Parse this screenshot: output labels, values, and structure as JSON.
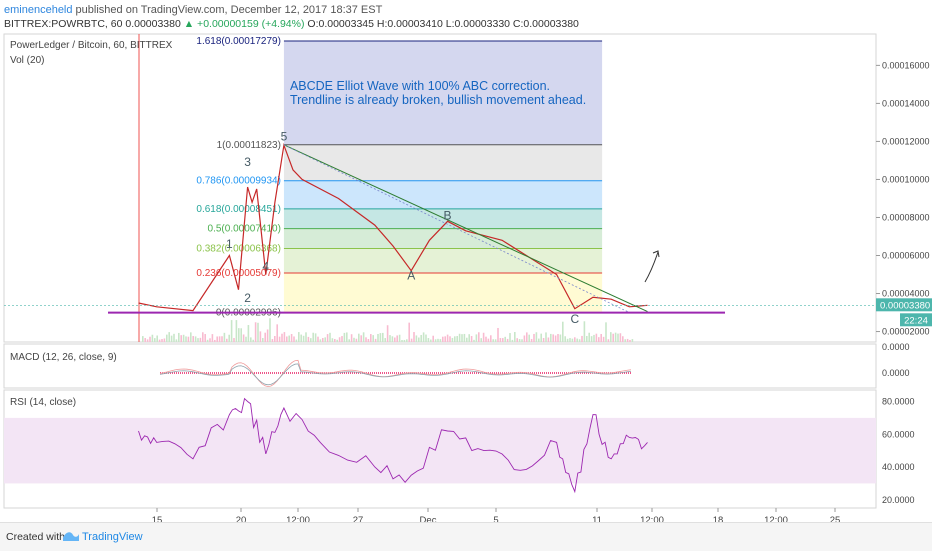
{
  "header": {
    "username": "eminenceheld",
    "published_text": " published on TradingView.com, December 12, 2017 18:37 EST",
    "symbol_line_prefix": "BITTREX:POWRBTC, 60  0.00003380 ",
    "change": "▲ +0.00000159 (+4.94%)",
    "ohlc": " O:0.00003345 H:0.00003410 L:0.00003330 C:0.00003380"
  },
  "main_legend": {
    "title": "PowerLedger / Bitcoin, 60, BITTREX",
    "volume": "Vol (20)"
  },
  "annotation": {
    "line1": "ABCDE Elliot Wave with 100% ABC correction.",
    "line2": "Trendline is already broken, bullish movement ahead."
  },
  "fib_levels": [
    {
      "label": "1.618(0.00017279)",
      "value": 0.00017279,
      "color": "#1a237e"
    },
    {
      "label": "1(0.00011823)",
      "value": 0.00011823,
      "color": "#555555"
    },
    {
      "label": "0.786(0.00009934)",
      "value": 9.934e-05,
      "color": "#2196f3"
    },
    {
      "label": "0.618(0.00008451)",
      "value": 8.451e-05,
      "color": "#26a69a"
    },
    {
      "label": "0.5(0.00007410)",
      "value": 7.41e-05,
      "color": "#4caf50"
    },
    {
      "label": "0.382(0.00006368)",
      "value": 6.368e-05,
      "color": "#8bc34a"
    },
    {
      "label": "0.236(0.00005079)",
      "value": 5.079e-05,
      "color": "#e53935"
    },
    {
      "label": "0(0.00002996)",
      "value": 2.996e-05,
      "color": "#555555"
    }
  ],
  "fib_zone_colors": [
    "#c5cae9",
    "#e0e0e0",
    "#bbdefb",
    "#b2dfdb",
    "#c8e6c9",
    "#dcedc8",
    "#fff9c4",
    "#ffcdd2"
  ],
  "wave_labels": [
    {
      "text": "1",
      "x": "Nov 19",
      "y": 6.4e-05
    },
    {
      "text": "2",
      "x": "Nov 20",
      "y": 3.55e-05
    },
    {
      "text": "3",
      "x": "Nov 20",
      "y": 0.000107
    },
    {
      "text": "4",
      "x": "Nov 21",
      "y": 5.2e-05
    },
    {
      "text": "5",
      "x": "Nov 22",
      "y": 0.0001205
    },
    {
      "text": "A",
      "x": "Nov 29",
      "y": 4.75e-05
    },
    {
      "text": "B",
      "x": "Dec 1",
      "y": 7.9e-05
    },
    {
      "text": "C",
      "x": "Dec 8",
      "y": 2.45e-05
    }
  ],
  "price_label": "0.00003380",
  "countdown_label": "22:24",
  "macd_legend": "MACD (12, 26, close, 9)",
  "rsi_legend": "RSI (14, close)",
  "footer": {
    "created": "Created with",
    "brand": "TradingView"
  },
  "colors": {
    "trendline": "#2e7d32",
    "support": "#9c27b0",
    "rsi_line": "#9c27b0",
    "rsi_band": "#f3e5f5",
    "price_axis_label": "#4db6ac",
    "macd_hist": "#e91e63"
  },
  "chart_data": {
    "type": "line",
    "price_axis": {
      "ticks": [
        "0.00016000",
        "0.00014000",
        "0.00012000",
        "0.00010000",
        "0.00008000",
        "0.00006000",
        "0.00004000",
        "0.00002000"
      ],
      "range": [
        1.45e-05,
        0.0001765
      ]
    },
    "x_ticks": [
      "15",
      "20",
      "12:00",
      "27",
      "Dec",
      "5",
      "11",
      "12:00",
      "18",
      "12:00",
      "25"
    ],
    "price_series": {
      "x": [
        "Nov 14",
        "Nov 15",
        "Nov 17",
        "Nov 19",
        "Nov 19 12:00",
        "Nov 20",
        "Nov 20 06:00",
        "Nov 20 12:00",
        "Nov 21",
        "Nov 21 12:00",
        "Nov 22",
        "Nov 22 12:00",
        "Nov 23",
        "Nov 25",
        "Nov 27",
        "Nov 28",
        "Nov 29",
        "Nov 30",
        "Dec 1",
        "Dec 2",
        "Dec 4",
        "Dec 6",
        "Dec 7",
        "Dec 8",
        "Dec 9",
        "Dec 10",
        "Dec 11",
        "Dec 12"
      ],
      "values": [
        3.5e-05,
        3.3e-05,
        3.1e-05,
        6e-05,
        4.2e-05,
        9.6e-05,
        8.8e-05,
        9.5e-05,
        5e-05,
        8.8e-05,
        0.000118,
        0.000105,
        0.0001,
        9e-05,
        7.6e-05,
        6.5e-05,
        5.2e-05,
        6.8e-05,
        7.8e-05,
        7.3e-05,
        6.8e-05,
        5.6e-05,
        5e-05,
        3.2e-05,
        3.8e-05,
        3.7e-05,
        3.3e-05,
        3.38e-05
      ]
    },
    "macd_axis": {
      "ticks": [
        "0.0000",
        "0.0000"
      ]
    },
    "rsi_axis": {
      "ticks": [
        "80.0000",
        "60.0000",
        "40.0000",
        "20.0000"
      ],
      "range": [
        15,
        87
      ],
      "band": [
        30,
        70
      ]
    },
    "rsi_series": {
      "x": [
        "Nov 14",
        "Nov 15",
        "Nov 17",
        "Nov 19",
        "Nov 20",
        "Nov 21",
        "Nov 22",
        "Nov 24",
        "Nov 27",
        "Nov 29",
        "Dec 1",
        "Dec 3",
        "Dec 5",
        "Dec 7",
        "Dec 8",
        "Dec 9",
        "Dec 10",
        "Dec 11",
        "Dec 12"
      ],
      "values": [
        62,
        55,
        45,
        72,
        80,
        48,
        76,
        55,
        40,
        35,
        62,
        50,
        38,
        55,
        25,
        72,
        45,
        58,
        55
      ]
    }
  }
}
